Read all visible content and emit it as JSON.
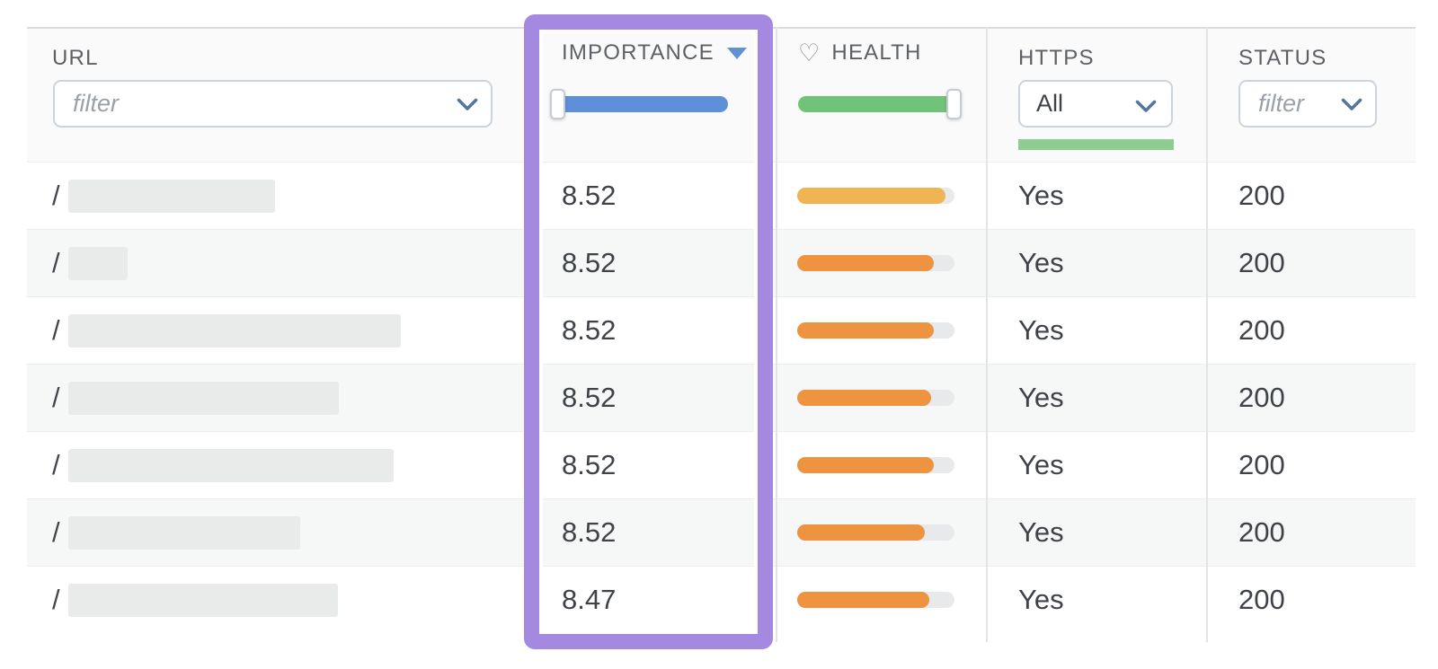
{
  "table": {
    "header": {
      "url": {
        "label": "URL",
        "filter_placeholder": "filter"
      },
      "importance": {
        "label": "IMPORTANCE",
        "sort_direction": "desc"
      },
      "health": {
        "label": "HEALTH",
        "icon_glyph": "♡"
      },
      "https": {
        "label": "HTTPS",
        "selected_option": "All"
      },
      "status": {
        "label": "STATUS",
        "filter_placeholder": "filter"
      }
    },
    "filters": {
      "importance_slider": {
        "track_color": "#5e90d9",
        "handle_at": "left"
      },
      "health_slider": {
        "track_color": "#70c378",
        "handle_at": "right"
      },
      "https_histogram_color": "#8ecd90"
    },
    "highlight": {
      "column": "IMPORTANCE",
      "color": "#a589e1"
    },
    "rows": [
      {
        "url_prefix": "/",
        "redacted_width": 230,
        "importance": "8.52",
        "health_pct": 94,
        "health_color": "#f0b452",
        "https": "Yes",
        "status": "200"
      },
      {
        "url_prefix": "/",
        "redacted_width": 66,
        "importance": "8.52",
        "health_pct": 87,
        "health_color": "#ee9440",
        "https": "Yes",
        "status": "200"
      },
      {
        "url_prefix": "/",
        "redacted_width": 370,
        "importance": "8.52",
        "health_pct": 87,
        "health_color": "#ee9440",
        "https": "Yes",
        "status": "200"
      },
      {
        "url_prefix": "/",
        "redacted_width": 301,
        "importance": "8.52",
        "health_pct": 85,
        "health_color": "#ee9440",
        "https": "Yes",
        "status": "200"
      },
      {
        "url_prefix": "/",
        "redacted_width": 362,
        "importance": "8.52",
        "health_pct": 87,
        "health_color": "#ee9440",
        "https": "Yes",
        "status": "200"
      },
      {
        "url_prefix": "/",
        "redacted_width": 258,
        "importance": "8.52",
        "health_pct": 81,
        "health_color": "#ee9440",
        "https": "Yes",
        "status": "200"
      },
      {
        "url_prefix": "/",
        "redacted_width": 300,
        "importance": "8.47",
        "health_pct": 84,
        "health_color": "#ee9440",
        "https": "Yes",
        "status": "200"
      }
    ]
  }
}
